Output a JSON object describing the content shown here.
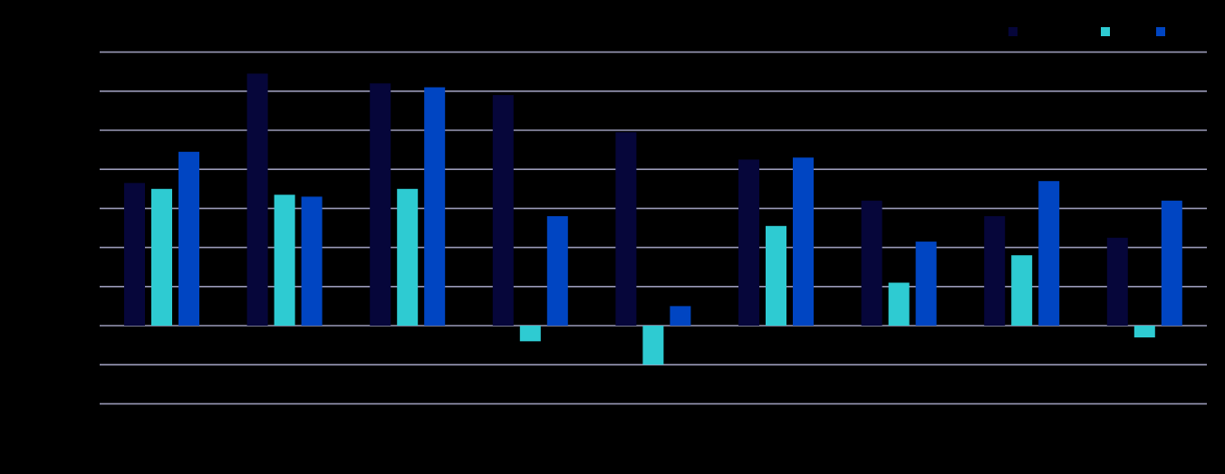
{
  "chart_data": {
    "type": "bar",
    "title": "",
    "xlabel": "",
    "ylabel": "",
    "ylim": [
      -20,
      70
    ],
    "gridlines": [
      -20,
      -10,
      0,
      10,
      20,
      30,
      40,
      50,
      60,
      70
    ],
    "grid": true,
    "legend_position": "top-right",
    "categories": [
      "",
      "",
      "",
      "",
      "",
      "",
      "",
      "",
      ""
    ],
    "series": [
      {
        "color": "#06063a",
        "values": [
          36.5,
          64.5,
          62,
          59,
          49.5,
          42.5,
          32,
          28,
          22.5
        ]
      },
      {
        "color": "#2ecbd2",
        "values": [
          35,
          33.5,
          35,
          -4,
          -10,
          25.5,
          11,
          18,
          -3
        ]
      },
      {
        "color": "#0045c2",
        "values": [
          44.5,
          33,
          61,
          28,
          5,
          43,
          21.5,
          37,
          32
        ]
      }
    ],
    "axis_tick_labels": [],
    "data_labels": []
  }
}
